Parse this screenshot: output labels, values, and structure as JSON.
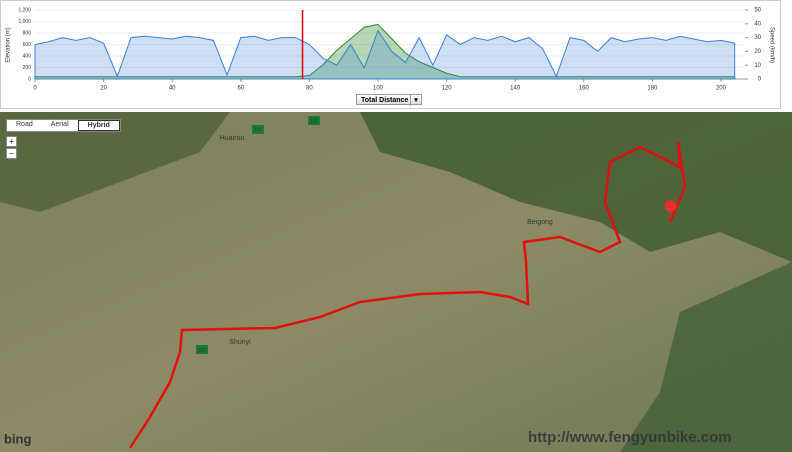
{
  "chart_data": {
    "type": "area",
    "y_label": "Elevation (m)",
    "y2_label": "Speed (km/h)",
    "x": [
      0,
      4,
      8,
      12,
      16,
      20,
      24,
      28,
      32,
      36,
      40,
      44,
      48,
      52,
      56,
      60,
      64,
      68,
      72,
      76,
      80,
      84,
      88,
      92,
      96,
      100,
      104,
      108,
      112,
      116,
      120,
      124,
      128,
      132,
      136,
      140,
      144,
      148,
      152,
      156,
      160,
      164,
      168,
      172,
      176,
      180,
      184,
      188,
      192,
      196,
      200,
      204
    ],
    "series": [
      {
        "name": "Elevation",
        "color": "#2e8b2e",
        "values": [
          40,
          40,
          40,
          40,
          40,
          40,
          40,
          40,
          40,
          40,
          40,
          40,
          40,
          40,
          40,
          40,
          40,
          40,
          40,
          40,
          60,
          250,
          500,
          700,
          900,
          950,
          700,
          450,
          300,
          200,
          100,
          40,
          40,
          40,
          40,
          40,
          40,
          40,
          40,
          40,
          40,
          40,
          40,
          40,
          40,
          40,
          40,
          40,
          40,
          40,
          40,
          40
        ]
      },
      {
        "name": "Speed",
        "color": "#3b7fd9",
        "axis": "y2",
        "values": [
          25,
          27,
          30,
          28,
          30,
          26,
          2,
          30,
          31,
          30,
          29,
          31,
          30,
          28,
          3,
          30,
          31,
          28,
          30,
          30,
          25,
          15,
          10,
          25,
          8,
          35,
          20,
          12,
          30,
          10,
          32,
          25,
          30,
          28,
          31,
          27,
          30,
          22,
          2,
          30,
          28,
          20,
          30,
          27,
          29,
          30,
          28,
          31,
          29,
          27,
          28,
          26
        ]
      }
    ],
    "xlim": [
      0,
      207
    ],
    "xticks": [
      0,
      20,
      40,
      60,
      80,
      100,
      120,
      140,
      160,
      180,
      200
    ],
    "ylim": [
      0,
      1200
    ],
    "yticks": [
      0,
      200,
      400,
      600,
      800,
      {
        "value": 1000,
        "label": "1,000"
      },
      {
        "value": 1200,
        "label": "1,200"
      }
    ],
    "y2lim": [
      0,
      50
    ],
    "y2ticks": [
      0,
      10,
      20,
      30,
      40,
      50
    ],
    "marker_x": 78
  },
  "controls": {
    "x_selector": "Total Distance"
  },
  "map": {
    "view_buttons": [
      "Road",
      "Aerial",
      "Hybrid"
    ],
    "zoom": [
      "+",
      "−"
    ],
    "places": [
      "Huairou",
      "Beigong",
      "Shunyi"
    ],
    "road_shields": [
      "101",
      "101",
      "101"
    ],
    "logo": "bing",
    "watermark": "http://www.fengyunbike.com"
  }
}
